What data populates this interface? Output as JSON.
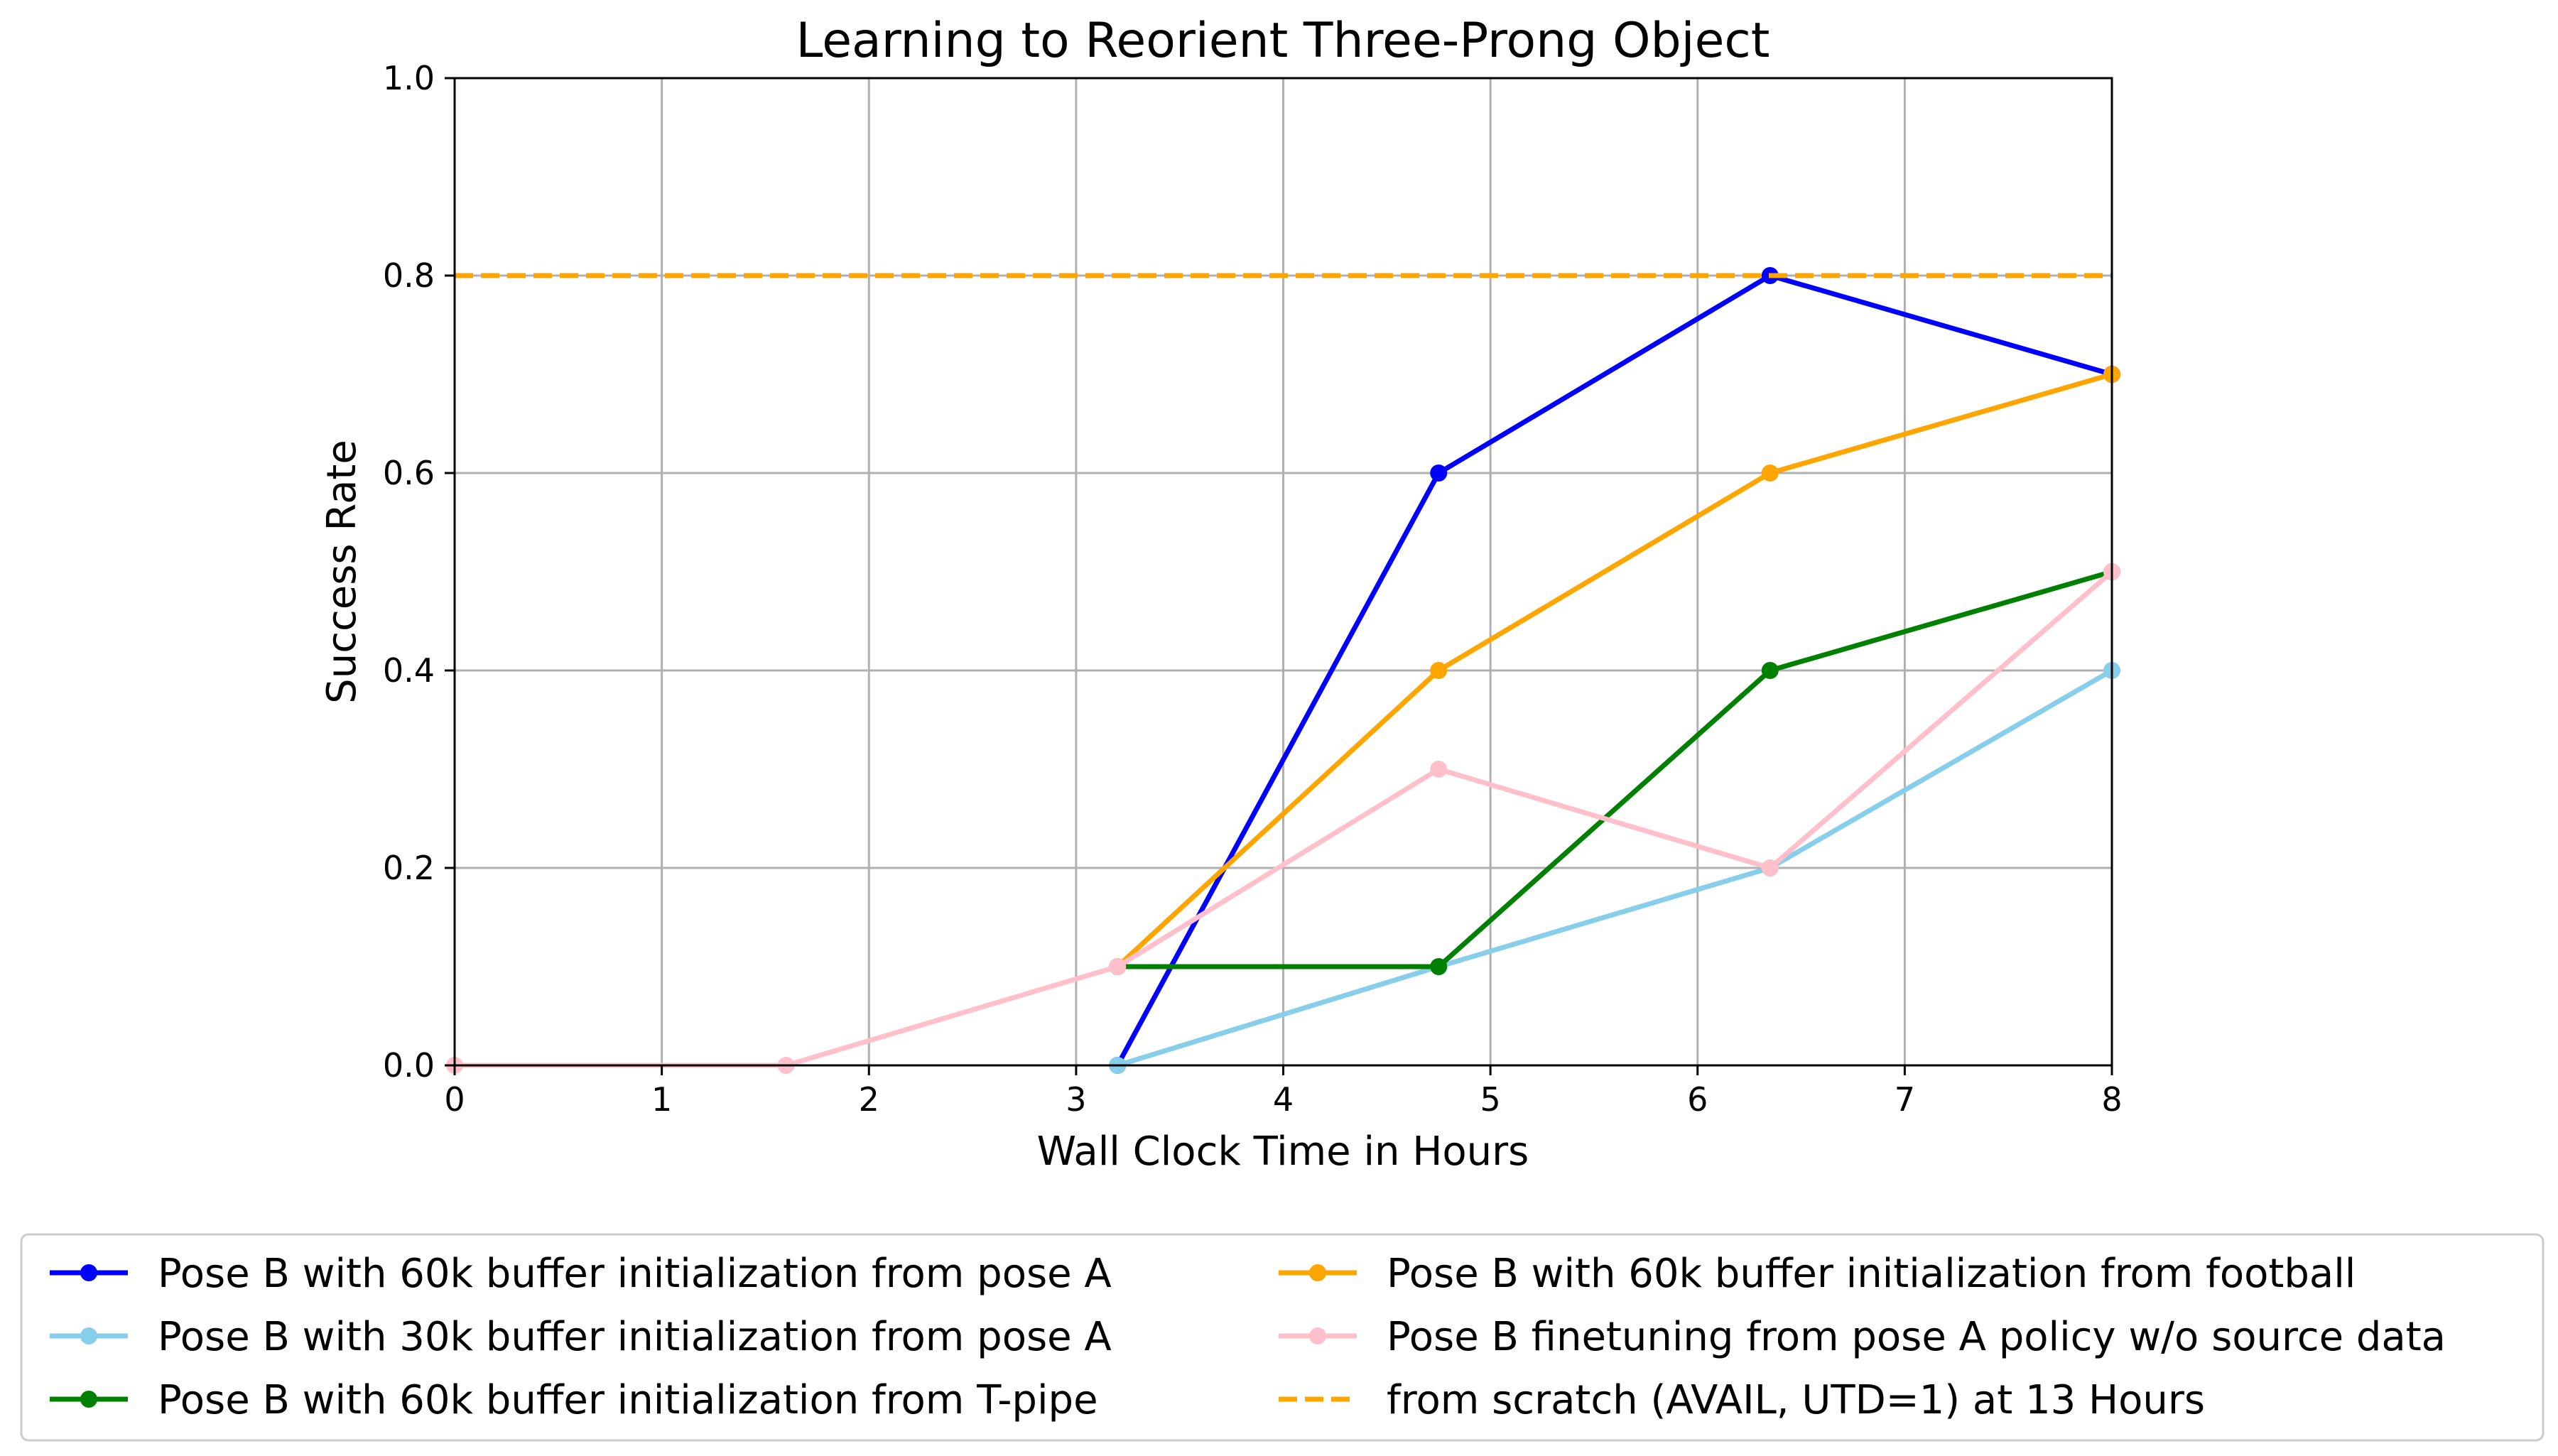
{
  "chart_data": {
    "type": "line",
    "title": "Learning to Reorient Three-Prong Object",
    "xlabel": "Wall Clock Time in Hours",
    "ylabel": "Success Rate",
    "xlim": [
      0,
      8
    ],
    "ylim": [
      0.0,
      1.0
    ],
    "xticks": [
      "0",
      "1",
      "2",
      "3",
      "4",
      "5",
      "6",
      "7",
      "8"
    ],
    "yticks": [
      "0.0",
      "0.2",
      "0.4",
      "0.6",
      "0.8",
      "1.0"
    ],
    "grid": true,
    "legend_placement": "below plot, two columns",
    "series": [
      {
        "name": "Pose B with 60k buffer initialization from pose A",
        "color": "#0000ff",
        "style": "solid-marker",
        "x": [
          3.2,
          4.75,
          6.35,
          8.0
        ],
        "y": [
          0.0,
          0.6,
          0.8,
          0.7
        ]
      },
      {
        "name": "Pose B with 30k buffer initialization from pose A",
        "color": "#87ceeb",
        "style": "solid-marker",
        "x": [
          3.2,
          4.75,
          6.35,
          8.0
        ],
        "y": [
          0.0,
          0.1,
          0.2,
          0.4
        ]
      },
      {
        "name": "Pose B with 60k buffer initialization from T-pipe",
        "color": "#008000",
        "style": "solid-marker",
        "x": [
          3.2,
          4.75,
          6.35,
          8.0
        ],
        "y": [
          0.1,
          0.1,
          0.4,
          0.5
        ]
      },
      {
        "name": "Pose B with 60k buffer initialization from football",
        "color": "#ffa500",
        "style": "solid-marker",
        "x": [
          3.2,
          4.75,
          6.35,
          8.0
        ],
        "y": [
          0.1,
          0.4,
          0.6,
          0.7
        ]
      },
      {
        "name": "Pose B finetuning from pose A policy w/o source data",
        "color": "#ffc0cb",
        "style": "solid-marker",
        "x": [
          0.0,
          1.6,
          3.2,
          4.75,
          6.35,
          8.0
        ],
        "y": [
          0.0,
          0.0,
          0.1,
          0.3,
          0.2,
          0.5
        ]
      },
      {
        "name": "from scratch (AVAIL, UTD=1) at 13 Hours",
        "color": "#ffa500",
        "style": "dashed",
        "x": [
          0.0,
          8.0
        ],
        "y": [
          0.8,
          0.8
        ]
      }
    ]
  }
}
